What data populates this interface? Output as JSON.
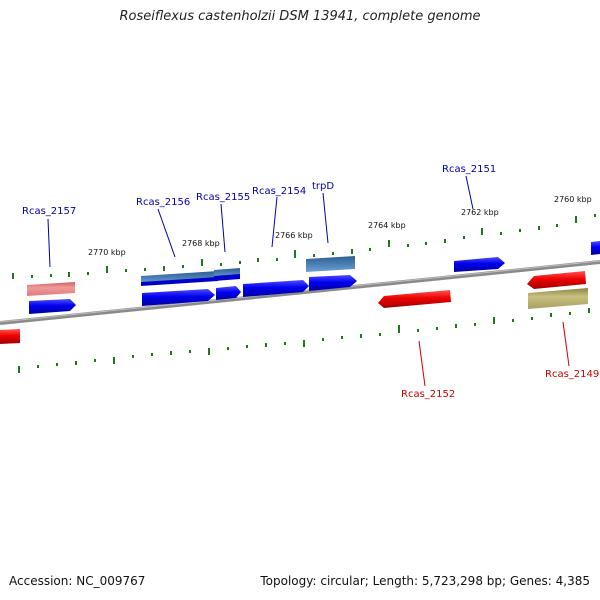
{
  "title": "Roseiflexus castenholzii DSM 13941, complete genome",
  "footer": {
    "accession": "Accession: NC_009767",
    "summary": "Topology: circular; Length: 5,723,298 bp; Genes: 4,385"
  },
  "scale_labels": [
    "2770 kbp",
    "2768 kbp",
    "2766 kbp",
    "2764 kbp",
    "2762 kbp",
    "2760 kbp"
  ],
  "gene_labels": {
    "rcas_2157": "Rcas_2157",
    "rcas_2156": "Rcas_2156",
    "rcas_2155": "Rcas_2155",
    "rcas_2154": "Rcas_2154",
    "trpd": "trpD",
    "rcas_2151": "Rcas_2151",
    "rcas_2152": "Rcas_2152",
    "rcas_2149": "Rcas_2149"
  },
  "colors": {
    "forward_gene": "#0000ee",
    "reverse_gene": "#ee0000",
    "pale_red": "#e88080",
    "steel_blue": "#4a7fb5",
    "olive": "#b8b070",
    "backbone": "#808080",
    "tick": "#1a7a1a"
  }
}
